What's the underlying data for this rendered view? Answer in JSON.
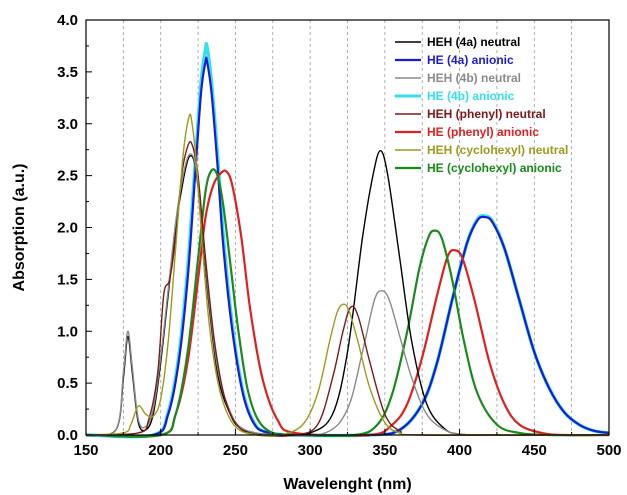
{
  "chart_data": {
    "type": "line",
    "xlabel": "Wavelenght (nm)",
    "ylabel": "Absorption (a.u.)",
    "xlim": [
      150,
      500
    ],
    "ylim": [
      0,
      4.0
    ],
    "x_ticks": [
      "150",
      "200",
      "250",
      "300",
      "350",
      "400",
      "450",
      "500"
    ],
    "y_ticks": [
      "0.0",
      "0.5",
      "1.0",
      "1.5",
      "2.0",
      "2.5",
      "3.0",
      "3.5",
      "4.0"
    ],
    "grid": "vertical dashed lines every 25 nm",
    "legend_position": "top-right",
    "series": [
      {
        "name": "HEH (4a) neutral",
        "color": "#000000",
        "x": [
          150,
          170,
          175,
          178,
          181,
          185,
          190,
          195,
          200,
          205,
          210,
          215,
          219,
          223,
          227,
          232,
          238,
          245,
          255,
          280,
          300,
          315,
          325,
          335,
          342,
          347,
          352,
          360,
          368,
          378,
          390,
          400,
          420,
          500
        ],
        "y": [
          0.0,
          0.05,
          0.55,
          0.95,
          0.6,
          0.12,
          0.05,
          0.2,
          0.7,
          1.35,
          2.0,
          2.45,
          2.68,
          2.6,
          2.1,
          1.3,
          0.6,
          0.25,
          0.05,
          0.0,
          0.02,
          0.2,
          0.8,
          1.9,
          2.5,
          2.74,
          2.5,
          1.7,
          0.9,
          0.3,
          0.06,
          0.01,
          0.0,
          0.0
        ]
      },
      {
        "name": "HE (4a) anionic",
        "color": "#1c1ccf",
        "x": [
          150,
          195,
          205,
          212,
          218,
          223,
          227,
          230,
          231,
          234,
          238,
          242,
          248,
          255,
          262,
          270,
          290,
          340,
          360,
          375,
          385,
          395,
          405,
          412,
          417,
          422,
          430,
          440,
          450,
          460,
          470,
          480,
          490,
          500
        ],
        "y": [
          0.0,
          0.0,
          0.2,
          0.7,
          1.5,
          2.5,
          3.3,
          3.6,
          3.6,
          3.3,
          2.6,
          1.8,
          1.0,
          0.4,
          0.12,
          0.03,
          0.0,
          0.0,
          0.05,
          0.3,
          0.7,
          1.3,
          1.85,
          2.07,
          2.1,
          2.05,
          1.8,
          1.3,
          0.8,
          0.45,
          0.22,
          0.1,
          0.04,
          0.02
        ]
      },
      {
        "name": "HEH (4b) neutral",
        "color": "#8a8a8a",
        "x": [
          150,
          170,
          175,
          178,
          181,
          185,
          190,
          195,
          200,
          205,
          210,
          215,
          219,
          223,
          227,
          232,
          238,
          245,
          255,
          280,
          310,
          325,
          335,
          343,
          348,
          353,
          360,
          368,
          378,
          390,
          400,
          420,
          500
        ],
        "y": [
          0.0,
          0.05,
          0.6,
          1.0,
          0.65,
          0.15,
          0.08,
          0.25,
          0.75,
          1.4,
          2.05,
          2.5,
          2.7,
          2.62,
          2.15,
          1.35,
          0.65,
          0.28,
          0.06,
          0.0,
          0.02,
          0.25,
          0.8,
          1.3,
          1.39,
          1.3,
          0.95,
          0.55,
          0.2,
          0.05,
          0.01,
          0.0,
          0.0
        ]
      },
      {
        "name": "HE (4b) anionic",
        "color": "#35dff0",
        "x": [
          150,
          195,
          205,
          212,
          218,
          223,
          227,
          230,
          231,
          234,
          238,
          242,
          248,
          255,
          262,
          270,
          290,
          340,
          360,
          375,
          385,
          395,
          405,
          412,
          417,
          422,
          430,
          440,
          450,
          460,
          470,
          480,
          490,
          500
        ],
        "y": [
          0.0,
          0.0,
          0.22,
          0.75,
          1.6,
          2.6,
          3.4,
          3.72,
          3.74,
          3.4,
          2.7,
          1.9,
          1.05,
          0.42,
          0.13,
          0.03,
          0.0,
          0.0,
          0.05,
          0.3,
          0.7,
          1.3,
          1.85,
          2.08,
          2.11,
          2.06,
          1.8,
          1.3,
          0.8,
          0.45,
          0.22,
          0.1,
          0.04,
          0.02
        ]
      },
      {
        "name": "HEH (phenyl) neutral",
        "color": "#7a1a1a",
        "x": [
          150,
          185,
          192,
          198,
          202,
          206,
          210,
          214,
          218,
          221,
          225,
          230,
          236,
          243,
          252,
          265,
          290,
          305,
          315,
          322,
          327,
          332,
          340,
          350,
          360,
          375,
          500
        ],
        "y": [
          0.0,
          0.02,
          0.15,
          0.6,
          1.35,
          1.5,
          1.9,
          2.5,
          2.78,
          2.8,
          2.5,
          1.7,
          0.9,
          0.35,
          0.08,
          0.0,
          0.0,
          0.1,
          0.55,
          1.0,
          1.23,
          1.15,
          0.7,
          0.2,
          0.04,
          0.0,
          0.0
        ]
      },
      {
        "name": "HE (phenyl) anionic",
        "color": "#e02020",
        "x": [
          150,
          200,
          210,
          218,
          225,
          230,
          235,
          240,
          244,
          248,
          254,
          260,
          268,
          278,
          290,
          340,
          355,
          365,
          375,
          385,
          392,
          397,
          402,
          410,
          420,
          430,
          440,
          455,
          470,
          500
        ],
        "y": [
          0.0,
          0.0,
          0.2,
          0.7,
          1.5,
          2.1,
          2.4,
          2.52,
          2.54,
          2.4,
          1.9,
          1.2,
          0.55,
          0.15,
          0.02,
          0.0,
          0.1,
          0.3,
          0.75,
          1.35,
          1.72,
          1.78,
          1.7,
          1.3,
          0.7,
          0.3,
          0.1,
          0.02,
          0.0,
          0.0
        ]
      },
      {
        "name": "HEH (cyclohexyl) neutral",
        "color": "#9e9a1e",
        "x": [
          150,
          175,
          180,
          185,
          190,
          195,
          200,
          205,
          210,
          215,
          219,
          221,
          224,
          228,
          233,
          240,
          250,
          265,
          280,
          295,
          305,
          313,
          318,
          322,
          326,
          332,
          340,
          350,
          360,
          375,
          500
        ],
        "y": [
          0.0,
          0.02,
          0.1,
          0.28,
          0.2,
          0.18,
          0.35,
          0.9,
          1.8,
          2.7,
          3.07,
          3.0,
          2.6,
          1.8,
          1.0,
          0.4,
          0.08,
          0.0,
          0.0,
          0.1,
          0.4,
          0.9,
          1.18,
          1.26,
          1.2,
          0.9,
          0.45,
          0.12,
          0.02,
          0.0,
          0.0
        ]
      },
      {
        "name": "HE (cyclohexyl) anionic",
        "color": "#1a8a1a",
        "x": [
          150,
          200,
          210,
          218,
          225,
          230,
          234,
          238,
          242,
          247,
          252,
          258,
          265,
          275,
          290,
          330,
          345,
          355,
          365,
          373,
          379,
          383,
          388,
          395,
          403,
          412,
          425,
          440,
          460,
          500
        ],
        "y": [
          0.0,
          0.0,
          0.2,
          0.8,
          1.7,
          2.35,
          2.55,
          2.5,
          2.2,
          1.6,
          1.0,
          0.45,
          0.15,
          0.02,
          0.0,
          0.0,
          0.1,
          0.4,
          1.0,
          1.6,
          1.9,
          1.97,
          1.9,
          1.5,
          0.9,
          0.4,
          0.1,
          0.02,
          0.0,
          0.0
        ]
      }
    ]
  }
}
